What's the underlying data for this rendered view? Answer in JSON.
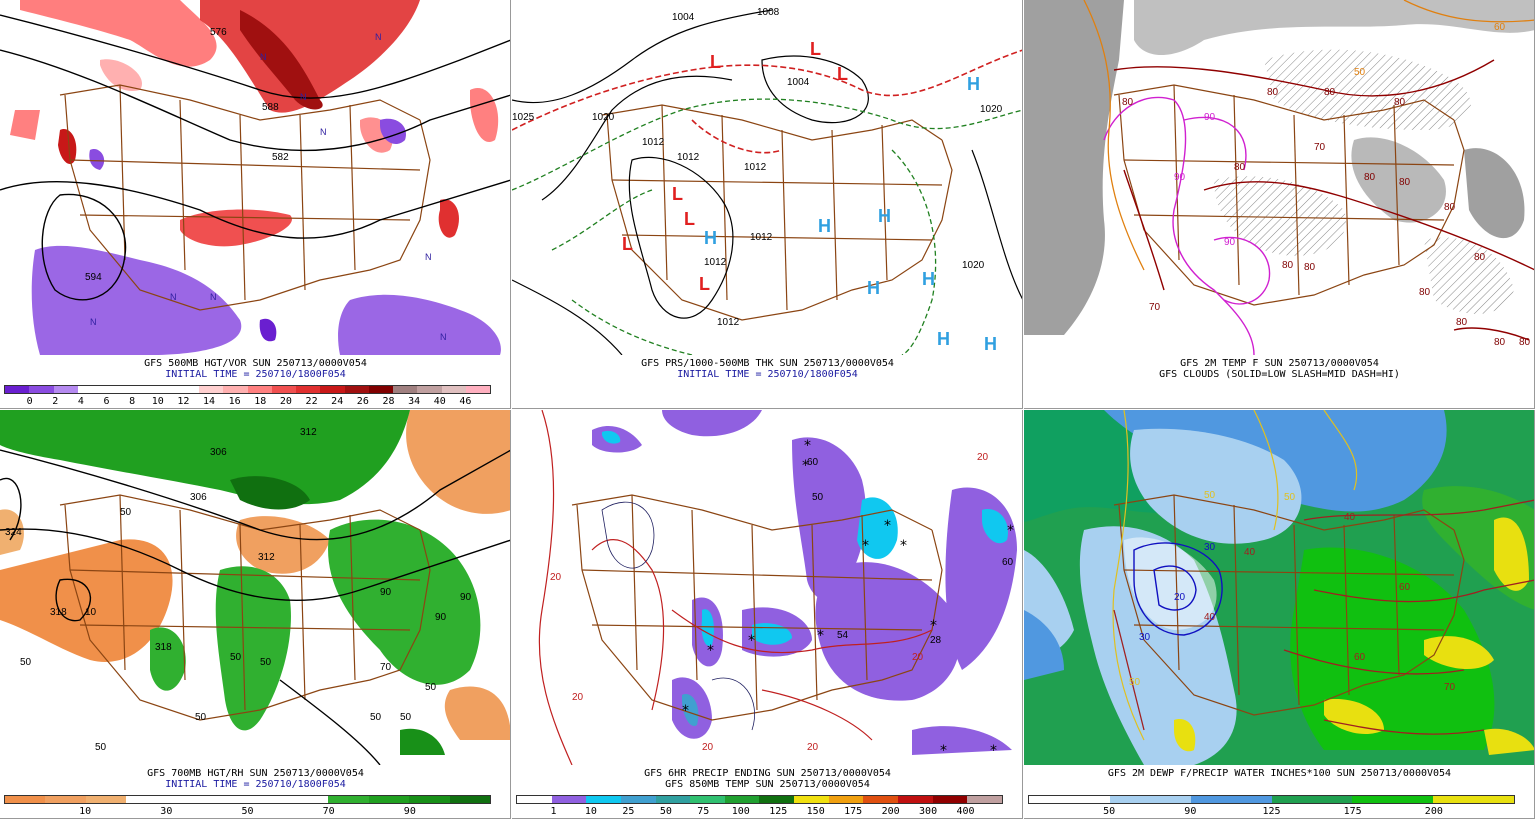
{
  "panels": [
    {
      "id": "p1",
      "caption1": "GFS 500MB HGT/VOR SUN 250713/0000V054",
      "caption2": "INITIAL TIME = 250710/1800F054",
      "contour_labels": [
        "582",
        "588",
        "594",
        "576",
        "576"
      ],
      "colorbar": {
        "colors": [
          "#6a1fd0",
          "#8a4ce0",
          "#b58af0",
          "#ffffff",
          "#ffffff",
          "#ffffff",
          "#ffffff",
          "#ffffff",
          "#ffd0d0",
          "#ffb0b0",
          "#ff8080",
          "#f05050",
          "#e03030",
          "#c81818",
          "#a01010",
          "#800000",
          "#a08080",
          "#c0a0a0",
          "#e0c0c0",
          "#ffb0c0"
        ],
        "ticks": [
          "0",
          "2",
          "4",
          "6",
          "8",
          "10",
          "12",
          "14",
          "16",
          "18",
          "20",
          "22",
          "24",
          "26",
          "28",
          "34",
          "40",
          "46"
        ]
      }
    },
    {
      "id": "p2",
      "caption1": "GFS PRS/1000-500MB THK SUN 250713/0000V054",
      "caption2": "INITIAL TIME = 250710/1800F054",
      "contour_labels": [
        "1004",
        "1008",
        "1004",
        "1020",
        "1025",
        "1012",
        "1012",
        "1012",
        "1020",
        "1020",
        "1012",
        "1012",
        "1012"
      ],
      "centers": [
        {
          "t": "L",
          "c": "#e02020"
        },
        {
          "t": "L",
          "c": "#e02020"
        },
        {
          "t": "L",
          "c": "#e02020"
        },
        {
          "t": "L",
          "c": "#e02020"
        },
        {
          "t": "L",
          "c": "#e02020"
        },
        {
          "t": "L",
          "c": "#e02020"
        },
        {
          "t": "L",
          "c": "#e02020"
        },
        {
          "t": "H",
          "c": "#30a0e0"
        },
        {
          "t": "H",
          "c": "#30a0e0"
        },
        {
          "t": "H",
          "c": "#30a0e0"
        },
        {
          "t": "H",
          "c": "#30a0e0"
        },
        {
          "t": "H",
          "c": "#30a0e0"
        },
        {
          "t": "H",
          "c": "#30a0e0"
        },
        {
          "t": "H",
          "c": "#30a0e0"
        },
        {
          "t": "H",
          "c": "#30a0e0"
        }
      ]
    },
    {
      "id": "p3",
      "caption1": "GFS 2M TEMP F SUN 250713/0000V054",
      "caption2": "GFS CLOUDS (SOLID=LOW SLASH=MID DASH=HI)",
      "contour_labels": [
        "80",
        "80",
        "80",
        "80",
        "80",
        "80",
        "80",
        "80",
        "80",
        "90",
        "90",
        "90",
        "80",
        "70",
        "50",
        "60",
        "80",
        "80",
        "80",
        "70",
        "80",
        "80"
      ]
    },
    {
      "id": "p4",
      "caption1": "GFS 700MB HGT/RH SUN 250713/0000V054",
      "caption2": "INITIAL TIME = 250710/1800F054",
      "contour_labels": [
        "50",
        "50",
        "50",
        "318",
        "318",
        "312",
        "312",
        "306",
        "306",
        "324",
        "50",
        "50",
        "50",
        "50",
        "90",
        "90",
        "90",
        "50",
        "50",
        "70",
        "10"
      ],
      "colorbar": {
        "colors": [
          "#f0904a",
          "#f0a060",
          "#f0b070",
          "#ffffff",
          "#ffffff",
          "#ffffff",
          "#ffffff",
          "#ffffff",
          "#30b030",
          "#20a020",
          "#189018",
          "#107010"
        ],
        "ticks": [
          "10",
          "30",
          "50",
          "70",
          "90"
        ]
      }
    },
    {
      "id": "p5",
      "caption1": "GFS 6HR PRECIP ENDING SUN 250713/0000V054",
      "caption2": "GFS 850MB TEMP SUN 250713/0000V054",
      "contour_labels": [
        "20",
        "20",
        "20",
        "20",
        "20",
        "54",
        "28",
        "60",
        "60",
        "20",
        "50"
      ],
      "colorbar": {
        "colors": [
          "#ffffff",
          "#9060e0",
          "#10c8f0",
          "#40a0d0",
          "#30a0a0",
          "#30c070",
          "#20a030",
          "#107010",
          "#f0e010",
          "#f0a010",
          "#e05010",
          "#c01010",
          "#900000",
          "#c0a0a0"
        ],
        "ticks": [
          "1",
          "10",
          "25",
          "50",
          "75",
          "100",
          "125",
          "150",
          "175",
          "200",
          "300",
          "400"
        ]
      }
    },
    {
      "id": "p6",
      "caption1": "GFS 2M DEWP F/PRECIP WATER INCHES*100 SUN 250713/0000V054",
      "caption2": "",
      "contour_labels": [
        "30",
        "40",
        "40",
        "40",
        "50",
        "50",
        "60",
        "60",
        "70",
        "20",
        "30",
        "50"
      ],
      "colorbar": {
        "colors": [
          "#ffffff",
          "#ffffff",
          "#a8d0f0",
          "#a8d0f0",
          "#5098e0",
          "#5098e0",
          "#20a050",
          "#20a050",
          "#10c010",
          "#10c010",
          "#e8e010",
          "#e8e010"
        ],
        "ticks": [
          "50",
          "90",
          "125",
          "175",
          "200"
        ]
      }
    }
  ]
}
